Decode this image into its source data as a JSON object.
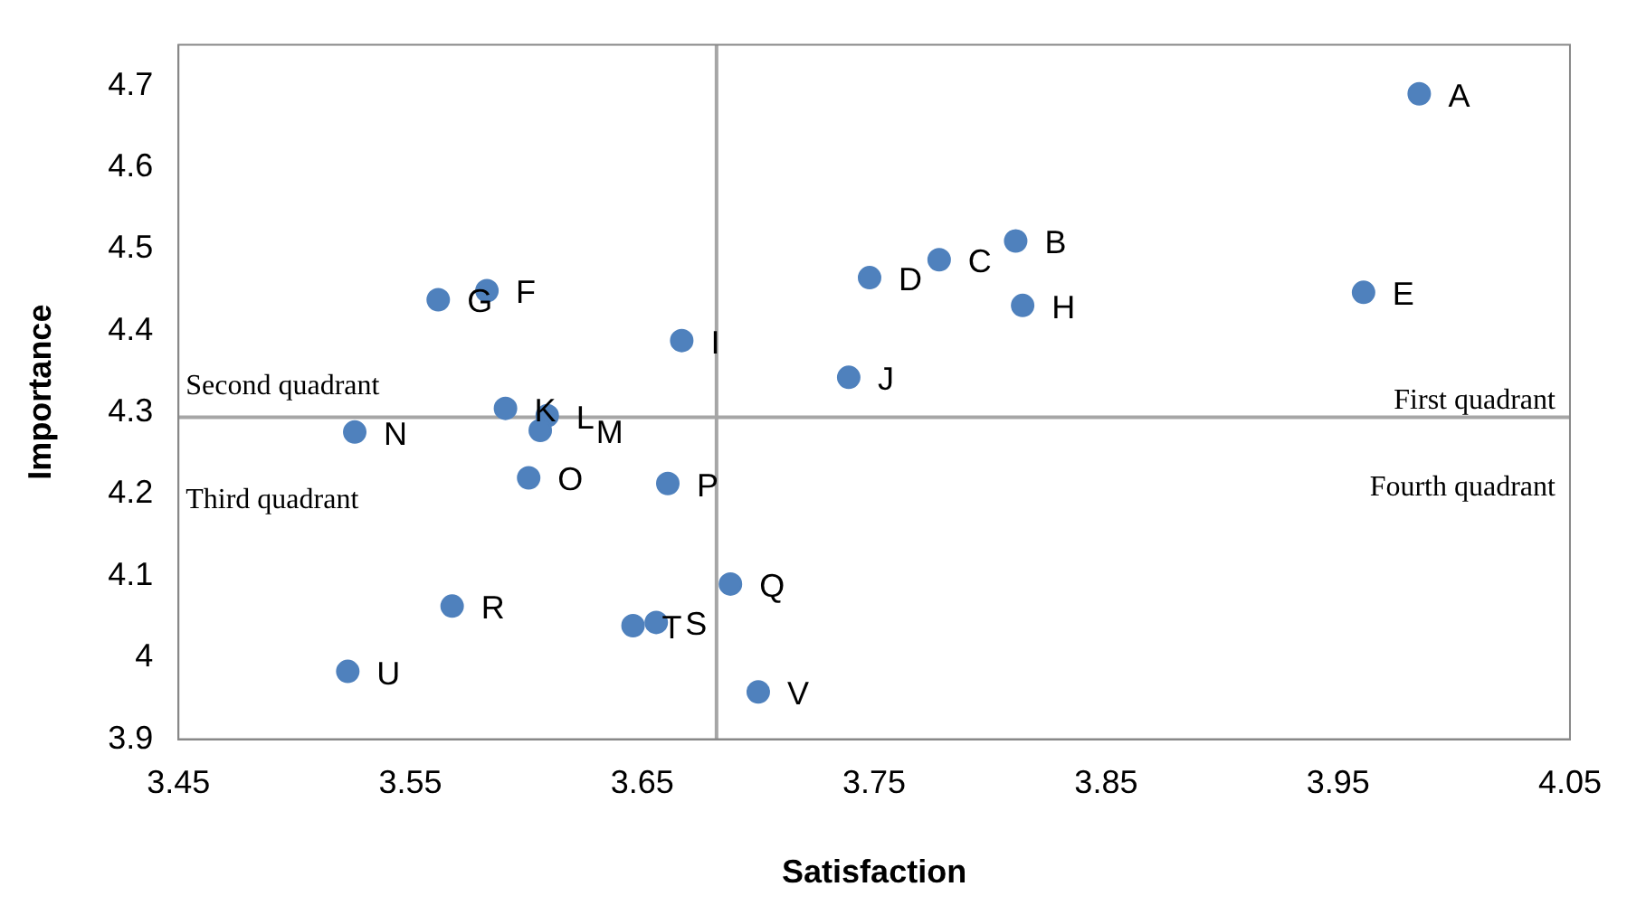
{
  "chart_data": {
    "type": "scatter",
    "xlabel": "Satisfaction",
    "ylabel": "Importance",
    "x": [
      3.985,
      3.811,
      3.778,
      3.748,
      3.961,
      3.583,
      3.562,
      3.814,
      3.667,
      3.739,
      3.591,
      3.609,
      3.606,
      3.526,
      3.601,
      3.661,
      3.688,
      3.568,
      3.656,
      3.646,
      3.523,
      3.7
    ],
    "series": [
      {
        "color": "#4f81bd",
        "values": [
          4.69,
          4.51,
          4.487,
          4.465,
          4.447,
          4.449,
          4.438,
          4.431,
          4.388,
          4.343,
          4.305,
          4.296,
          4.278,
          4.276,
          4.22,
          4.213,
          4.09,
          4.063,
          4.043,
          4.039,
          3.983,
          3.958
        ]
      }
    ],
    "xlim": [
      3.45,
      4.05
    ],
    "xticks": [
      3.45,
      3.55,
      3.65,
      3.75,
      3.85,
      3.95,
      4.05
    ],
    "ylim": [
      3.9,
      4.75
    ],
    "yticks": [
      3.9,
      4,
      4.1,
      4.2,
      4.3,
      4.4,
      4.5,
      4.6,
      4.7
    ],
    "grid": false,
    "legend": false,
    "marker": "circle",
    "ref_lines": [
      {
        "axis": "x",
        "value": 3.682,
        "color": "#a6a6a6"
      },
      {
        "axis": "y",
        "value": 4.294,
        "color": "#a6a6a6"
      }
    ],
    "annotations": [
      {
        "text": "A",
        "x": 3.985,
        "y": 4.69
      },
      {
        "text": "B",
        "x": 3.811,
        "y": 4.51
      },
      {
        "text": "C",
        "x": 3.778,
        "y": 4.487
      },
      {
        "text": "D",
        "x": 3.748,
        "y": 4.465
      },
      {
        "text": "E",
        "x": 3.961,
        "y": 4.447
      },
      {
        "text": "F",
        "x": 3.583,
        "y": 4.449
      },
      {
        "text": "G",
        "x": 3.562,
        "y": 4.438
      },
      {
        "text": "H",
        "x": 3.814,
        "y": 4.431
      },
      {
        "text": "I",
        "x": 3.667,
        "y": 4.388
      },
      {
        "text": "J",
        "x": 3.739,
        "y": 4.343
      },
      {
        "text": "K",
        "x": 3.591,
        "y": 4.305
      },
      {
        "text": "L",
        "x": 3.609,
        "y": 4.296
      },
      {
        "text": "M",
        "x": 3.606,
        "y": 4.278
      },
      {
        "text": "N",
        "x": 3.526,
        "y": 4.276
      },
      {
        "text": "O",
        "x": 3.601,
        "y": 4.22
      },
      {
        "text": "P",
        "x": 3.661,
        "y": 4.213
      },
      {
        "text": "Q",
        "x": 3.688,
        "y": 4.09
      },
      {
        "text": "R",
        "x": 3.568,
        "y": 4.063
      },
      {
        "text": "S",
        "x": 3.656,
        "y": 4.043
      },
      {
        "text": "T",
        "x": 3.646,
        "y": 4.039
      },
      {
        "text": "U",
        "x": 3.523,
        "y": 3.983
      },
      {
        "text": "V",
        "x": 3.7,
        "y": 3.958
      },
      "Second quadrant",
      "Third quadrant",
      "First quadrant",
      "Fourth quadrant"
    ]
  }
}
